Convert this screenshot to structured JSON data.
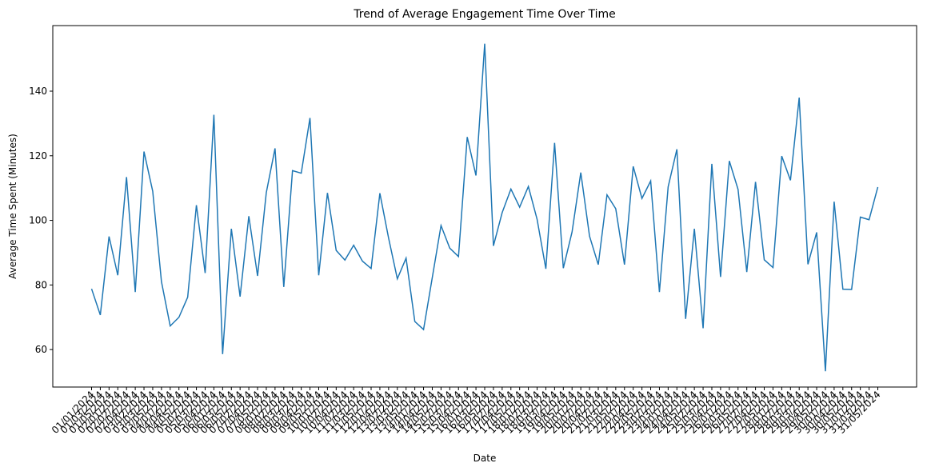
{
  "chart_data": {
    "type": "line",
    "title": "Trend of Average Engagement Time Over Time",
    "xlabel": "Date",
    "ylabel": "Average Time Spent (Minutes)",
    "categories": [
      "01/01/2024",
      "01/03/2024",
      "01/05/2024",
      "02/01/2024",
      "02/02/2024",
      "02/04/2024",
      "03/02/2024",
      "03/03/2024",
      "03/05/2024",
      "04/01/2024",
      "04/04/2024",
      "04/05/2024",
      "05/02/2024",
      "05/03/2024",
      "05/04/2024",
      "06/01/2024",
      "06/03/2024",
      "06/05/2024",
      "07/02/2024",
      "07/04/2024",
      "07/05/2024",
      "08/01/2024",
      "08/02/2024",
      "08/03/2024",
      "09/03/2024",
      "09/04/2024",
      "09/05/2024",
      "10/01/2024",
      "10/02/2024",
      "10/04/2024",
      "11/02/2024",
      "11/03/2024",
      "11/05/2024",
      "12/01/2024",
      "12/04/2024",
      "13/02/2024",
      "13/03/2024",
      "13/05/2024",
      "14/01/2024",
      "14/04/2024",
      "14/05/2024",
      "15/02/2024",
      "15/03/2024",
      "15/04/2024",
      "16/01/2024",
      "16/03/2024",
      "16/05/2024",
      "17/02/2024",
      "17/04/2024",
      "17/05/2024",
      "18/01/2024",
      "18/02/2024",
      "18/03/2024",
      "19/03/2024",
      "19/04/2024",
      "19/05/2024",
      "20/01/2024",
      "20/02/2024",
      "20/04/2024",
      "21/02/2024",
      "21/03/2024",
      "21/05/2024",
      "22/01/2024",
      "22/04/2024",
      "22/05/2024",
      "23/02/2024",
      "23/03/2024",
      "24/01/2024",
      "24/04/2024",
      "24/05/2024",
      "25/02/2024",
      "25/03/2024",
      "25/04/2024",
      "26/01/2024",
      "26/03/2024",
      "26/05/2024",
      "27/02/2024",
      "27/04/2024",
      "27/05/2024",
      "28/01/2024",
      "28/02/2024",
      "28/03/2024",
      "29/03/2024",
      "29/04/2024",
      "29/05/2024",
      "30/01/2024",
      "30/04/2024",
      "30/05/2024",
      "31/01/2024",
      "31/03/2024",
      "31/05/2024"
    ],
    "series": [
      {
        "name": "Average Time Spent",
        "color": "#1f77b4",
        "values": [
          78.8,
          70.7,
          95,
          83,
          113.4,
          77.8,
          121.3,
          109,
          81,
          67.3,
          70,
          76.2,
          104.7,
          83.7,
          132.7,
          58.6,
          97.4,
          76.4,
          101.3,
          82.8,
          108.6,
          122.3,
          79.4,
          115.4,
          114.6,
          131.7,
          83,
          108.5,
          90.7,
          87.7,
          92.3,
          87.4,
          85.1,
          108.4,
          94.5,
          81.9,
          88.3,
          68.7,
          66.2,
          82.3,
          98.4,
          91.4,
          88.8,
          125.8,
          113.9,
          154.7,
          92.1,
          102.4,
          109.7,
          104.1,
          110.5,
          100.3,
          85,
          124,
          85.2,
          96.4,
          114.8,
          95.1,
          86.3,
          107.9,
          103.6,
          86.3,
          116.7,
          106.8,
          112.2,
          77.8,
          110.4,
          122,
          69.5,
          97.4,
          66.6,
          117.5,
          82.5,
          118.4,
          109.6,
          84,
          111.9,
          87.8,
          85.4,
          119.9,
          112.4,
          138,
          86.4,
          96.3,
          53.3,
          105.8,
          78.7,
          78.6,
          101,
          100.2,
          110.3
        ]
      }
    ],
    "ylim": [
      48.4,
      160.3
    ],
    "yticks": [
      60,
      80,
      100,
      120,
      140
    ]
  }
}
